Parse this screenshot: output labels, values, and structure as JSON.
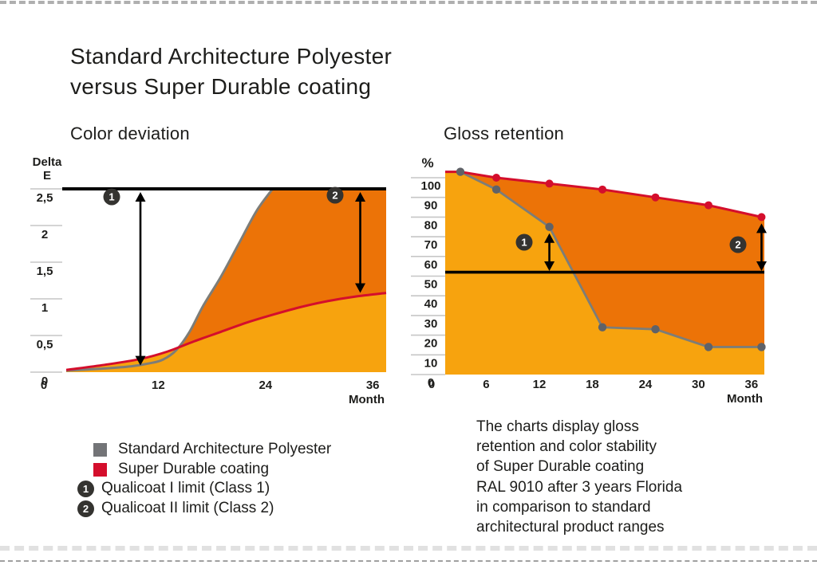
{
  "page": {
    "title_lines": [
      "Standard Architecture Polyester",
      "versus Super Durable coating"
    ]
  },
  "colors": {
    "light_orange": "#F7A30E",
    "dark_orange": "#EC7307",
    "red_series": "#D40E2C",
    "gray_series": "#7D7D78",
    "gray_dot": "#5F6268",
    "gray_swatch": "#737477",
    "badge_bg": "#343330",
    "limit_line": "#000000",
    "gridline": "#C6C6C6",
    "text": "#1D1D1B"
  },
  "legend": {
    "items": [
      {
        "marker": "gray-square",
        "label": "Standard Architecture Polyester"
      },
      {
        "marker": "red-square",
        "label": "Super Durable coating"
      },
      {
        "marker": "badge",
        "number": "1",
        "label": "Qualicoat I limit (Class 1)"
      },
      {
        "marker": "badge",
        "number": "2",
        "label": "Qualicoat II limit (Class 2)"
      }
    ]
  },
  "caption_lines": [
    "The charts display gloss",
    "retention and color stability",
    "of Super Durable coating",
    "RAL 9010 after 3 years Florida",
    "in comparison to standard",
    "architectural product ranges"
  ],
  "chart_data": [
    {
      "id": "color_deviation",
      "type": "area",
      "title": "Color deviation",
      "ylabel_lines": [
        "Delta",
        "E"
      ],
      "xlabel": "Month",
      "x_ticks": [
        0,
        12,
        24,
        36
      ],
      "y_tick_labels": [
        "0",
        "0,5",
        "1",
        "1,5",
        "2",
        "2,5"
      ],
      "y_tick_values": [
        0,
        0.5,
        1,
        1.5,
        2,
        2.5
      ],
      "xlim": [
        0,
        37.5
      ],
      "ylim": [
        0,
        2.6
      ],
      "grid": "short-tick-segments-left-only",
      "legend_position": "below-left",
      "limit_line": {
        "value": 2.5
      },
      "series": [
        {
          "name": "Standard Architecture Polyester",
          "role": "gray",
          "months": [
            1.7,
            6,
            9,
            11,
            12.5,
            14,
            15.5,
            17,
            19,
            21,
            23,
            24.8
          ],
          "values": [
            0.02,
            0.05,
            0.08,
            0.12,
            0.17,
            0.3,
            0.55,
            0.9,
            1.3,
            1.75,
            2.2,
            2.5
          ],
          "clipped_at_limit_after_month": 24.8
        },
        {
          "name": "Super Durable coating",
          "role": "red",
          "months": [
            1.7,
            6,
            10,
            13,
            16,
            19,
            22,
            25,
            28,
            31,
            34,
            37.5
          ],
          "values": [
            0.03,
            0.1,
            0.18,
            0.28,
            0.42,
            0.55,
            0.68,
            0.79,
            0.89,
            0.97,
            1.03,
            1.08
          ]
        }
      ],
      "annotations": [
        {
          "badge": "1",
          "month": 10,
          "from": 2.5,
          "to": 0.08
        },
        {
          "badge": "2",
          "month": 34.6,
          "from": 2.5,
          "to": 1.07
        }
      ]
    },
    {
      "id": "gloss_retention",
      "type": "line",
      "title": "Gloss retention",
      "ylabel": "%",
      "xlabel": "Month",
      "x_ticks": [
        0,
        6,
        12,
        18,
        24,
        30,
        36
      ],
      "y_ticks": [
        0,
        10,
        20,
        30,
        40,
        50,
        60,
        70,
        80,
        90,
        100
      ],
      "xlim": [
        0,
        38
      ],
      "ylim": [
        0,
        105
      ],
      "grid": "short-tick-segments-left-only",
      "legend_position": "below-left",
      "months": [
        0,
        6,
        12,
        18,
        24,
        30,
        36
      ],
      "series": [
        {
          "name": "Standard Architecture Polyester",
          "role": "gray",
          "values": [
            103,
            94,
            75,
            24,
            23,
            14,
            14
          ]
        },
        {
          "name": "Super Durable coating",
          "role": "red",
          "values": [
            103,
            100,
            97,
            94,
            90,
            86,
            80
          ]
        }
      ],
      "limit_line": {
        "value": 52
      },
      "annotations": [
        {
          "badge": "1",
          "month": 12,
          "from": 75,
          "to": 52
        },
        {
          "badge": "2",
          "month": 36,
          "from": 80,
          "to": 52
        }
      ]
    }
  ]
}
